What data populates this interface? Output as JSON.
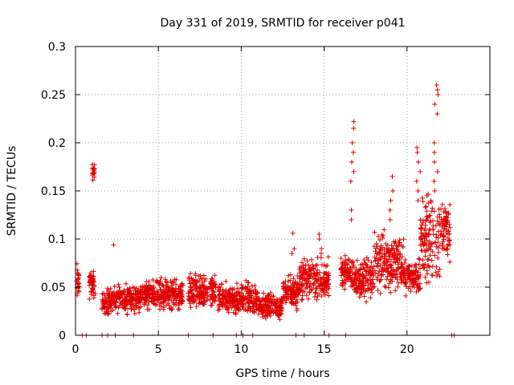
{
  "chart_data": {
    "type": "scatter",
    "title": "Day 331 of 2019, SRMTID for receiver p041",
    "xlabel": "GPS time / hours",
    "ylabel": "SRMTID / TECUs",
    "xlim": [
      0,
      25
    ],
    "ylim": [
      0,
      0.3
    ],
    "x_ticks": [
      0,
      5,
      10,
      15,
      20
    ],
    "y_ticks": [
      0,
      0.05,
      0.1,
      0.15,
      0.2,
      0.25,
      0.3
    ],
    "x_tick_labels": [
      "0",
      "5",
      "10",
      "15",
      "20"
    ],
    "y_tick_labels": [
      "0",
      "0.05",
      "0.1",
      "0.15",
      "0.2",
      "0.25",
      "0.3"
    ],
    "grid": true,
    "marker": "+",
    "series_color": "#e00000",
    "series": [
      {
        "name": "SRMTID",
        "segments": [
          {
            "x_start": 0.05,
            "x_end": 0.25,
            "center": 0.055,
            "spread": 0.018
          },
          {
            "x_start": 0.8,
            "x_end": 1.2,
            "center": 0.052,
            "spread": 0.012
          },
          {
            "x_start": 1.0,
            "x_end": 1.15,
            "center": 0.17,
            "spread": 0.008
          },
          {
            "x_start": 1.6,
            "x_end": 2.1,
            "center": 0.035,
            "spread": 0.012
          },
          {
            "x_start": 2.1,
            "x_end": 4.0,
            "center": 0.038,
            "spread": 0.012
          },
          {
            "x_start": 4.0,
            "x_end": 6.5,
            "center": 0.042,
            "spread": 0.013
          },
          {
            "x_start": 6.8,
            "x_end": 8.5,
            "center": 0.045,
            "spread": 0.016
          },
          {
            "x_start": 8.6,
            "x_end": 9.5,
            "center": 0.038,
            "spread": 0.013
          },
          {
            "x_start": 9.5,
            "x_end": 11.0,
            "center": 0.038,
            "spread": 0.014
          },
          {
            "x_start": 11.0,
            "x_end": 12.5,
            "center": 0.03,
            "spread": 0.012
          },
          {
            "x_start": 12.5,
            "x_end": 13.5,
            "center": 0.045,
            "spread": 0.014
          },
          {
            "x_start": 13.5,
            "x_end": 15.3,
            "center": 0.058,
            "spread": 0.018
          },
          {
            "x_start": 16.0,
            "x_end": 16.8,
            "center": 0.065,
            "spread": 0.015
          },
          {
            "x_start": 16.8,
            "x_end": 18.0,
            "center": 0.06,
            "spread": 0.018
          },
          {
            "x_start": 18.0,
            "x_end": 19.8,
            "center": 0.075,
            "spread": 0.025
          },
          {
            "x_start": 19.8,
            "x_end": 20.8,
            "center": 0.06,
            "spread": 0.015
          },
          {
            "x_start": 20.8,
            "x_end": 22.0,
            "center": 0.1,
            "spread": 0.04
          },
          {
            "x_start": 22.0,
            "x_end": 22.6,
            "center": 0.11,
            "spread": 0.03
          }
        ],
        "spikes": [
          {
            "x": 16.7,
            "y_values": [
              0.222,
              0.215,
              0.2,
              0.19,
              0.18,
              0.17,
              0.16,
              0.13,
              0.12
            ]
          },
          {
            "x": 21.75,
            "y_values": [
              0.26,
              0.255,
              0.25,
              0.24,
              0.23,
              0.2,
              0.19,
              0.18,
              0.17,
              0.16,
              0.15
            ]
          },
          {
            "x": 20.7,
            "y_values": [
              0.195,
              0.19,
              0.18,
              0.17,
              0.16,
              0.15,
              0.14
            ]
          },
          {
            "x": 14.75,
            "y_values": [
              0.105,
              0.1,
              0.09,
              0.085
            ]
          },
          {
            "x": 13.15,
            "y_values": [
              0.106,
              0.09,
              0.085
            ]
          },
          {
            "x": 2.3,
            "y_values": [
              0.094
            ]
          },
          {
            "x": 19.1,
            "y_values": [
              0.165,
              0.15,
              0.14,
              0.13,
              0.12
            ]
          }
        ],
        "zero_points_x": [
          0.4,
          0.65,
          1.6,
          1.95,
          2.4,
          3.5,
          6.8,
          8.3,
          9.7,
          10.1,
          10.7,
          13.3,
          13.8,
          15.3,
          16.3,
          22.7,
          22.85
        ]
      }
    ]
  }
}
